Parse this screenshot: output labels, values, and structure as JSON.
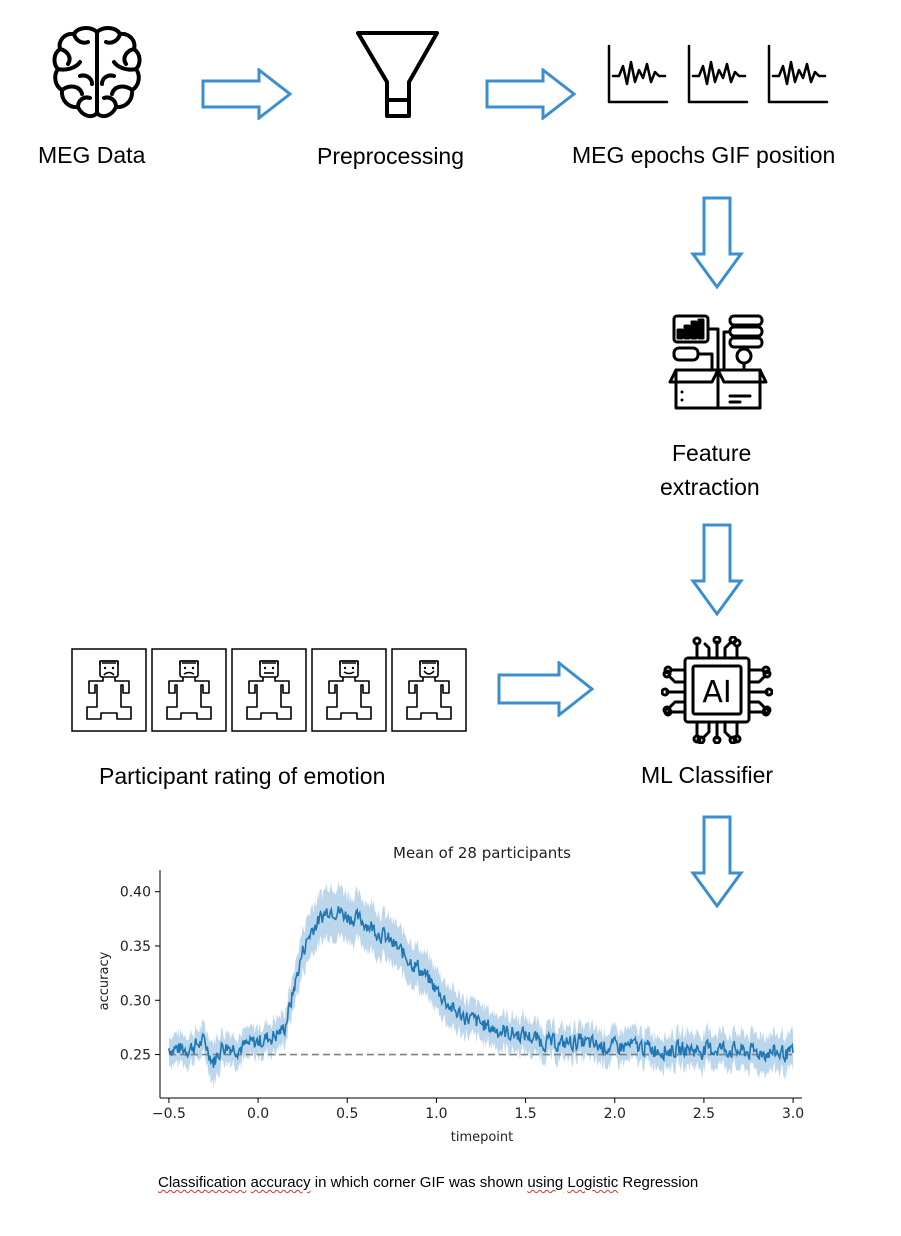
{
  "pipeline": {
    "meg_data_label": "MEG Data",
    "preprocessing_label": "Preprocessing",
    "epochs_label": "MEG epochs GIF position",
    "feature_extraction_label_line1": "Feature",
    "feature_extraction_label_line2": "extraction",
    "classifier_label": "ML Classifier",
    "classifier_chip_text": "AI",
    "participant_rating_label": "Participant rating of emotion",
    "arrow_color": "#3b8fd0",
    "emotion_faces": [
      "very-sad",
      "sad",
      "neutral",
      "happy",
      "very-happy"
    ]
  },
  "chart_data": {
    "type": "line",
    "title": "Mean of 28 participants",
    "xlabel": "timepoint",
    "ylabel": "accuracy",
    "xlim": [
      -0.55,
      3.05
    ],
    "ylim": [
      0.21,
      0.42
    ],
    "xticks": [
      "−0.5",
      "0.0",
      "0.5",
      "1.0",
      "1.5",
      "2.0",
      "2.5",
      "3.0"
    ],
    "yticks": [
      "0.25",
      "0.30",
      "0.35",
      "0.40"
    ],
    "line_color": "#1f77b4",
    "band_color": "#a6c8e6",
    "chance_level": 0.25,
    "series": [
      {
        "x": [
          -0.5,
          -0.4,
          -0.3,
          -0.25,
          -0.2,
          -0.1,
          0.0,
          0.1,
          0.15,
          0.2,
          0.25,
          0.3,
          0.35,
          0.4,
          0.45,
          0.5,
          0.6,
          0.7,
          0.8,
          0.9,
          1.0,
          1.1,
          1.2,
          1.3,
          1.4,
          1.5,
          1.6,
          1.7,
          1.8,
          1.9,
          2.0,
          2.1,
          2.2,
          2.3,
          2.4,
          2.5,
          2.6,
          2.7,
          2.8,
          2.9,
          3.0
        ],
        "values": [
          0.256,
          0.255,
          0.262,
          0.243,
          0.258,
          0.256,
          0.262,
          0.268,
          0.275,
          0.31,
          0.345,
          0.365,
          0.375,
          0.385,
          0.382,
          0.378,
          0.372,
          0.36,
          0.345,
          0.33,
          0.31,
          0.29,
          0.282,
          0.275,
          0.27,
          0.268,
          0.262,
          0.26,
          0.262,
          0.258,
          0.257,
          0.258,
          0.256,
          0.254,
          0.255,
          0.254,
          0.256,
          0.253,
          0.252,
          0.252,
          0.25
        ],
        "ci": [
          0.012,
          0.012,
          0.012,
          0.018,
          0.012,
          0.012,
          0.012,
          0.013,
          0.013,
          0.016,
          0.018,
          0.02,
          0.02,
          0.022,
          0.022,
          0.02,
          0.02,
          0.019,
          0.018,
          0.018,
          0.017,
          0.016,
          0.015,
          0.014,
          0.014,
          0.014,
          0.013,
          0.013,
          0.013,
          0.013,
          0.013,
          0.013,
          0.013,
          0.013,
          0.014,
          0.014,
          0.014,
          0.015,
          0.015,
          0.015,
          0.015
        ]
      }
    ]
  },
  "caption": {
    "words": [
      "Classification",
      " ",
      "accuracy",
      " in which corner GIF was shown ",
      "using",
      " ",
      "Logistic",
      " Regression"
    ]
  }
}
